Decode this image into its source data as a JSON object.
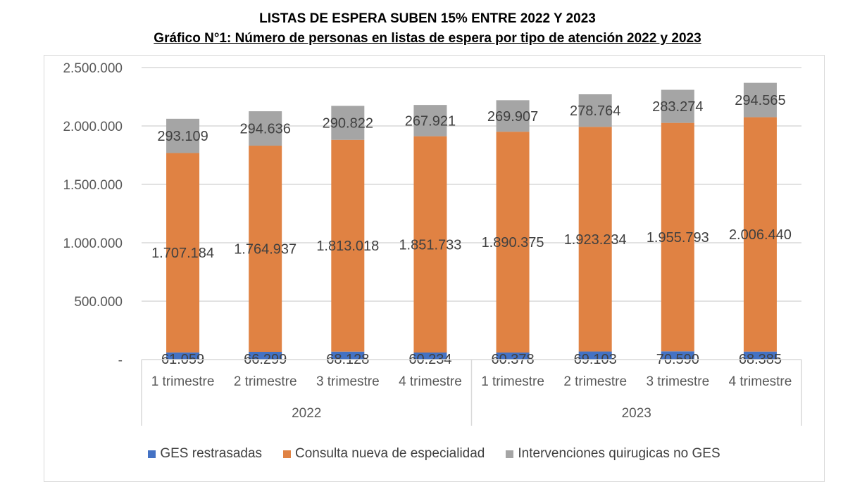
{
  "chart_data": {
    "type": "stacked-bar",
    "title": "LISTAS DE ESPERA SUBEN 15% ENTRE 2022 Y 2023",
    "subtitle": "Gráfico N°1: Número de personas en listas de espera por tipo de atención 2022 y 2023",
    "xlabel": "",
    "ylabel": "",
    "ylim": [
      0,
      2500000
    ],
    "y_ticks": [
      0,
      500000,
      1000000,
      1500000,
      2000000,
      2500000
    ],
    "y_tick_labels": [
      "-",
      "500.000",
      "1.000.000",
      "1.500.000",
      "2.000.000",
      "2.500.000"
    ],
    "grid": true,
    "legend_position": "bottom",
    "groups": [
      {
        "label": "2022",
        "categories": [
          "1 trimestre",
          "2 trimestre",
          "3 trimestre",
          "4 trimestre"
        ]
      },
      {
        "label": "2023",
        "categories": [
          "1 trimestre",
          "2 trimestre",
          "3 trimestre",
          "4 trimestre"
        ]
      }
    ],
    "categories": [
      "1 trimestre",
      "2 trimestre",
      "3 trimestre",
      "4 trimestre",
      "1 trimestre",
      "2 trimestre",
      "3 trimestre",
      "4 trimestre"
    ],
    "series": [
      {
        "name": "GES restrasadas",
        "color": "#4472c4",
        "values": [
          61059,
          66299,
          68128,
          60234,
          60378,
          69103,
          70590,
          68385
        ],
        "labels": [
          "61.059",
          "66.299",
          "68.128",
          "60.234",
          "60.378",
          "69.103",
          "70.590",
          "68.385"
        ]
      },
      {
        "name": "Consulta nueva de especialidad",
        "color": "#e08243",
        "values": [
          1707184,
          1764937,
          1813018,
          1851733,
          1890375,
          1923234,
          1955793,
          2006440
        ],
        "labels": [
          "1.707.184",
          "1.764.937",
          "1.813.018",
          "1.851.733",
          "1.890.375",
          "1.923.234",
          "1.955.793",
          "2.006.440"
        ]
      },
      {
        "name": "Intervenciones quirugicas no GES",
        "color": "#a5a5a5",
        "values": [
          293109,
          294636,
          290822,
          267921,
          269907,
          278764,
          283274,
          294565
        ],
        "labels": [
          "293.109",
          "294.636",
          "290.822",
          "267.921",
          "269.907",
          "278.764",
          "283.274",
          "294.565"
        ]
      }
    ]
  }
}
